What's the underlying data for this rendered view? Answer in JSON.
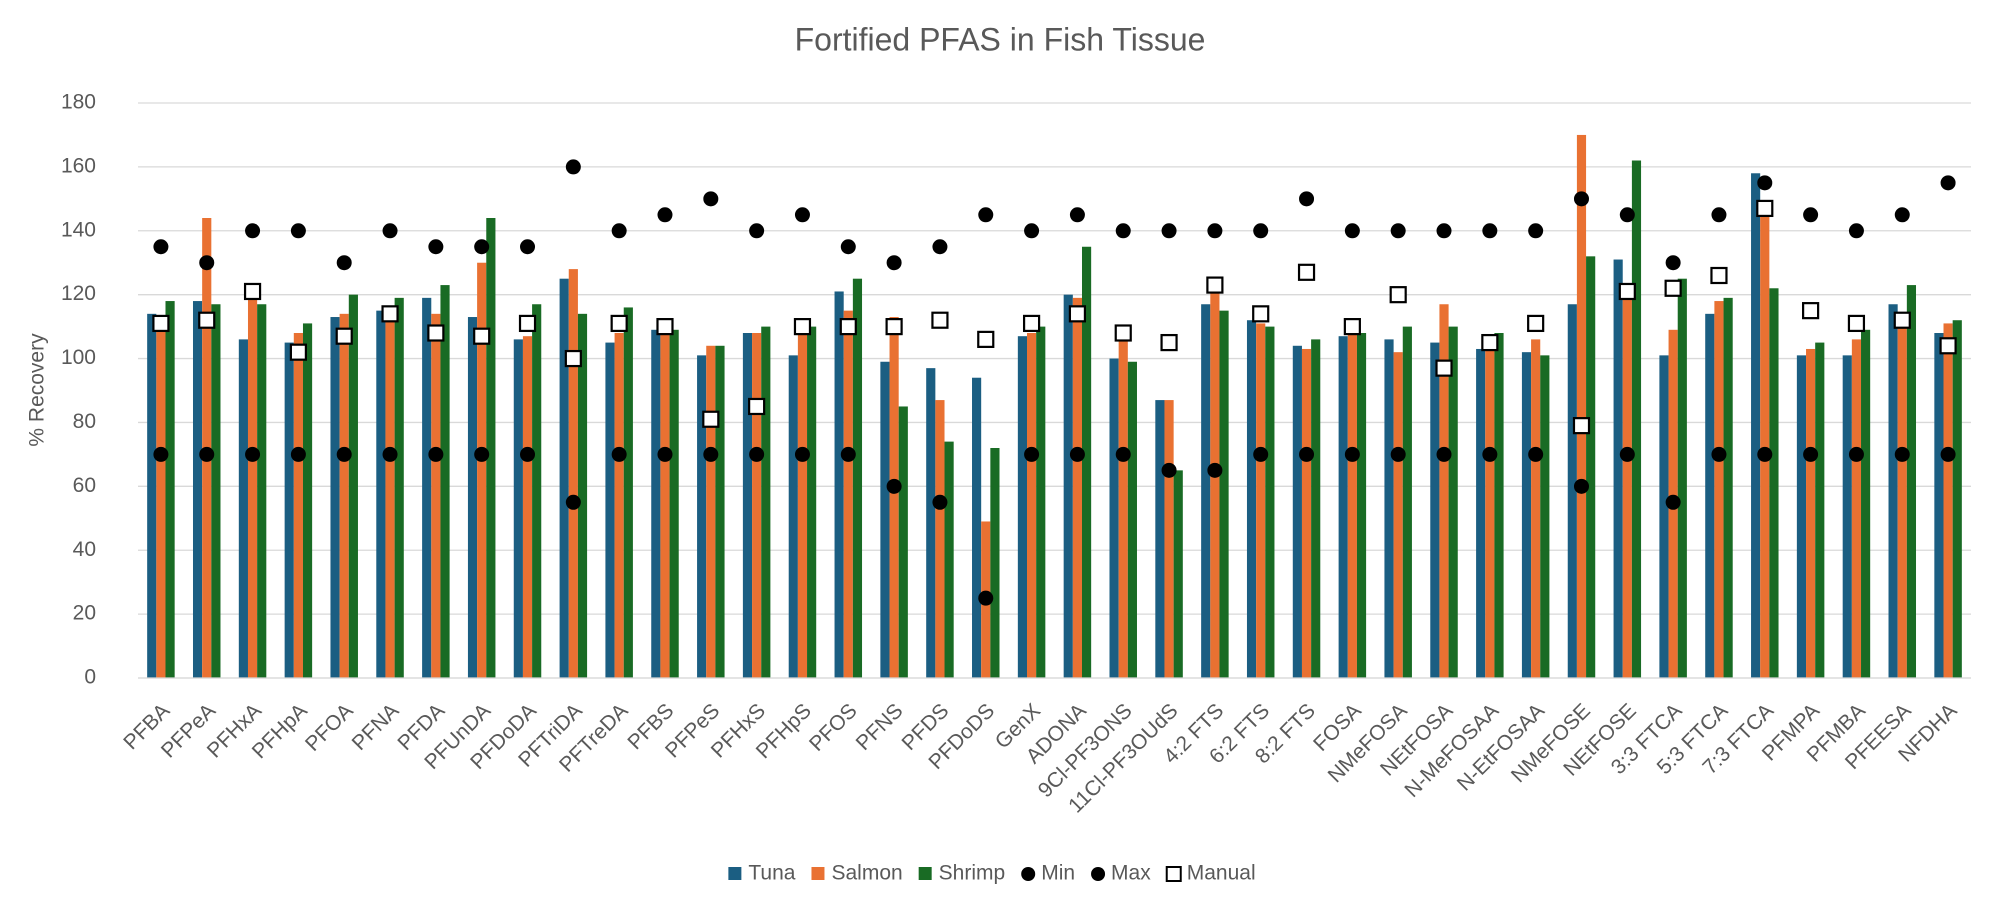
{
  "chart_data": {
    "type": "bar",
    "title": "Fortified PFAS in Fish Tissue",
    "y_label": "% Recovery",
    "categories": [
      "PFBA",
      "PFPeA",
      "PFHxA",
      "PFHpA",
      "PFOA",
      "PFNA",
      "PFDA",
      "PFUnDA",
      "PFDoDA",
      "PFTriDA",
      "PFTreDA",
      "PFBS",
      "PFPeS",
      "PFHxS",
      "PFHpS",
      "PFOS",
      "PFNS",
      "PFDS",
      "PFDoDS",
      "GenX",
      "ADONA",
      "9Cl-PF3ONS",
      "11Cl-PF3OUdS",
      "4:2 FTS",
      "6:2 FTS",
      "8:2 FTS",
      "FOSA",
      "NMeFOSA",
      "NEtFOSA",
      "N-MeFOSAA",
      "N-EtFOSAA",
      "NMeFOSE",
      "NEtFOSE",
      "3:3 FTCA",
      "5:3 FTCA",
      "7:3 FTCA",
      "PFMPA",
      "PFMBA",
      "PFEESA",
      "NFDHA"
    ],
    "series": [
      {
        "name": "Tuna",
        "color": "#1b5e82",
        "values": [
          114,
          118,
          106,
          105,
          113,
          115,
          119,
          113,
          106,
          125,
          105,
          109,
          101,
          108,
          101,
          121,
          99,
          97,
          94,
          107,
          120,
          100,
          87,
          117,
          112,
          104,
          107,
          106,
          105,
          103,
          102,
          117,
          131,
          101,
          114,
          158,
          101,
          101,
          117,
          108
        ]
      },
      {
        "name": "Salmon",
        "color": "#e97132",
        "values": [
          113,
          144,
          121,
          108,
          114,
          116,
          114,
          130,
          107,
          128,
          108,
          108,
          104,
          108,
          108,
          115,
          113,
          87,
          49,
          108,
          119,
          106,
          87,
          122,
          111,
          103,
          108,
          102,
          117,
          104,
          106,
          170,
          121,
          109,
          118,
          147,
          103,
          106,
          113,
          111
        ]
      },
      {
        "name": "Shrimp",
        "color": "#196b24",
        "values": [
          118,
          117,
          117,
          111,
          120,
          119,
          123,
          144,
          117,
          114,
          116,
          109,
          104,
          110,
          110,
          125,
          85,
          74,
          72,
          110,
          135,
          99,
          65,
          115,
          110,
          106,
          108,
          110,
          110,
          108,
          101,
          132,
          162,
          125,
          119,
          122,
          105,
          109,
          123,
          112
        ]
      },
      {
        "name": "Min",
        "color": "#000000",
        "marker": "circle",
        "values": [
          70,
          70,
          70,
          70,
          70,
          70,
          70,
          70,
          70,
          55,
          70,
          70,
          70,
          70,
          70,
          70,
          60,
          55,
          25,
          70,
          70,
          70,
          65,
          65,
          70,
          70,
          70,
          70,
          70,
          70,
          70,
          60,
          70,
          55,
          70,
          70,
          70,
          70,
          70,
          70
        ]
      },
      {
        "name": "Max",
        "color": "#000000",
        "marker": "circle",
        "values": [
          135,
          130,
          140,
          140,
          130,
          140,
          135,
          135,
          135,
          160,
          140,
          145,
          150,
          140,
          145,
          135,
          130,
          135,
          145,
          140,
          145,
          140,
          140,
          140,
          140,
          150,
          140,
          140,
          140,
          140,
          140,
          150,
          145,
          130,
          145,
          155,
          145,
          140,
          145,
          155
        ]
      },
      {
        "name": "Manual",
        "color": "#000000",
        "marker": "square",
        "values": [
          111,
          112,
          121,
          102,
          107,
          114,
          108,
          107,
          111,
          100,
          111,
          110,
          81,
          85,
          110,
          110,
          110,
          112,
          106,
          111,
          114,
          108,
          105,
          123,
          114,
          127,
          110,
          120,
          97,
          105,
          111,
          79,
          121,
          122,
          126,
          147,
          115,
          111,
          112,
          104
        ]
      }
    ],
    "ylim": [
      0,
      180
    ],
    "yticks": [
      0,
      20,
      40,
      60,
      80,
      100,
      120,
      140,
      160,
      180
    ],
    "grid": true
  }
}
